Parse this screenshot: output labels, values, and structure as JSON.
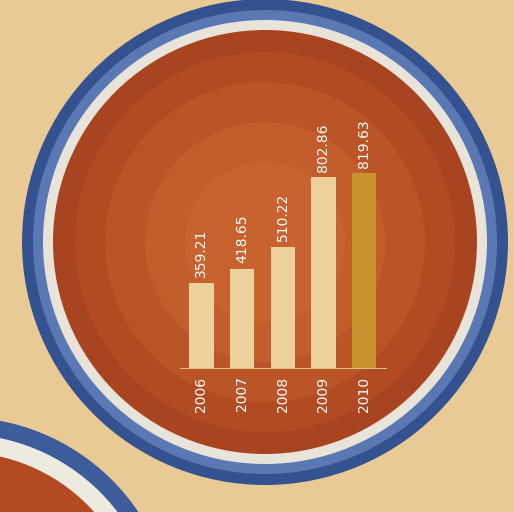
{
  "chart_data": {
    "type": "bar",
    "categories": [
      "2006",
      "2007",
      "2008",
      "2009",
      "2010"
    ],
    "values": [
      359.21,
      418.65,
      510.22,
      802.86,
      819.63
    ],
    "colors": [
      "#ecd19a",
      "#ecd19a",
      "#ecd19a",
      "#ecd19a",
      "#c9932e"
    ],
    "data_labels": true,
    "tick_labels": "x",
    "grid": false
  }
}
